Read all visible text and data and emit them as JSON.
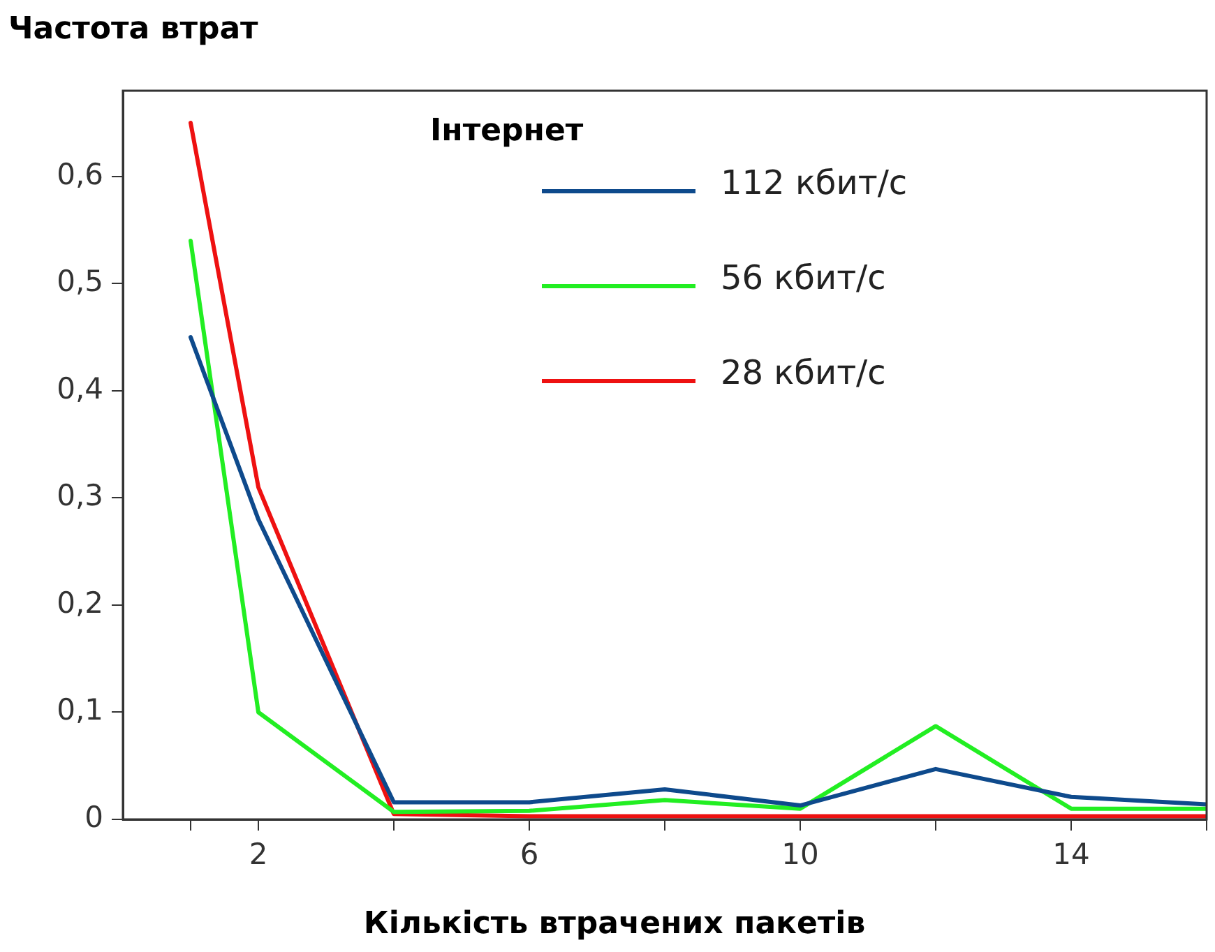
{
  "chart_data": {
    "type": "line",
    "title": "Частота втрат",
    "xlabel": "Кількість втрачених пакетів",
    "legend_title": "Інтернет",
    "legend": "top right",
    "grid": false,
    "marker": "none",
    "line_style": "solid",
    "x": [
      1,
      2,
      4,
      6,
      8,
      10,
      12,
      14,
      16
    ],
    "xlim": [
      0,
      16
    ],
    "xticks": [
      {
        "value": 1,
        "label": null
      },
      2,
      {
        "value": 4,
        "label": null
      },
      6,
      {
        "value": 8,
        "label": null
      },
      10,
      {
        "value": 12,
        "label": null
      },
      14,
      {
        "value": 16,
        "label": null
      }
    ],
    "ylim": [
      0,
      0.68
    ],
    "yticks": [
      {
        "value": 0,
        "label": "0"
      },
      {
        "value": 0.1,
        "label": "0,1"
      },
      {
        "value": 0.2,
        "label": "0,2"
      },
      {
        "value": 0.3,
        "label": "0,3"
      },
      {
        "value": 0.4,
        "label": "0,4"
      },
      {
        "value": 0.5,
        "label": "0,5"
      },
      {
        "value": 0.6,
        "label": "0,6"
      }
    ],
    "series": [
      {
        "name": "112 кбит/с",
        "color": "#0e4a8c",
        "values": [
          0.45,
          0.28,
          0.016,
          0.016,
          0.028,
          0.013,
          0.047,
          0.021,
          0.014
        ]
      },
      {
        "name": "56 кбит/с",
        "color": "#22ee22",
        "values": [
          0.54,
          0.1,
          0.007,
          0.008,
          0.018,
          0.01,
          0.087,
          0.01,
          0.01
        ]
      },
      {
        "name": "28 кбит/с",
        "color": "#ee1111",
        "values": [
          0.65,
          0.31,
          0.005,
          0.003,
          0.003,
          0.003,
          0.003,
          0.003,
          0.003
        ]
      }
    ]
  }
}
